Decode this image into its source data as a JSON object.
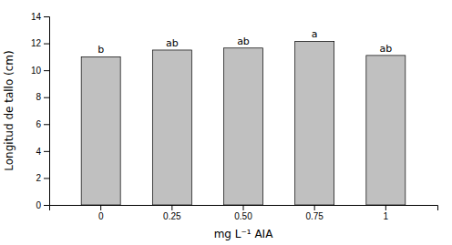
{
  "chart_data": {
    "type": "bar",
    "categories": [
      "0",
      "0.25",
      "0.50",
      "0.75",
      "1"
    ],
    "values": [
      11.0,
      11.5,
      11.65,
      12.15,
      11.1
    ],
    "annotations": [
      "b",
      "ab",
      "ab",
      "a",
      "ab"
    ],
    "color": "#c0c0c0",
    "xlabel": "mg L⁻¹ AIA",
    "ylabel": "Longitud de tallo (cm)",
    "ylim": [
      0,
      14
    ],
    "yticks": [
      0,
      2,
      4,
      6,
      8,
      10,
      12,
      14
    ],
    "grid": false
  }
}
